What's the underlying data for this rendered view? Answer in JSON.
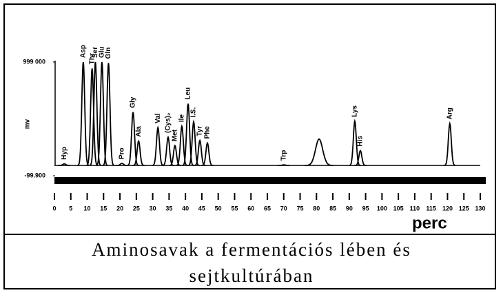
{
  "chart_data": {
    "type": "chromatogram",
    "title": "Aminosavak a fermentációs lében és sejtkultúrában",
    "y_label": "mv",
    "x_label": "perc",
    "categories": [
      "Asp",
      "Thr",
      "Ser",
      "Glu",
      "Gln",
      "Pro",
      "Gly",
      "Ala",
      "Val",
      "(Cys)₂",
      "Met",
      "Ile",
      "Leu",
      "I.S.",
      "Tyr",
      "Phe",
      "Trp",
      null,
      "Lys",
      "His",
      "Arg",
      "Hyp"
    ],
    "x": [
      8.8,
      11.5,
      12.5,
      14.5,
      16.5,
      20.6,
      24,
      25.7,
      31.6,
      34.7,
      36.8,
      38.9,
      40.8,
      42.5,
      44.4,
      46.7,
      70,
      80.8,
      91.7,
      93.4,
      120.7,
      3
    ],
    "values": [
      999000,
      937000,
      999000,
      999000,
      990000,
      20000,
      515000,
      236000,
      366000,
      273000,
      192000,
      379000,
      596000,
      422000,
      242000,
      217000,
      5000,
      255000,
      428000,
      143000,
      404000,
      15000
    ],
    "color": "#000000",
    "xlim": [
      0,
      130
    ],
    "xticks": [
      0,
      5,
      10,
      15,
      20,
      25,
      30,
      35,
      40,
      45,
      50,
      55,
      60,
      65,
      70,
      75,
      80,
      85,
      90,
      95,
      100,
      105,
      110,
      115,
      120,
      125,
      130
    ],
    "ylim": [
      -99900,
      999000
    ],
    "yticks": [
      {
        "value": 999000,
        "label": "999 000"
      },
      {
        "value": -99900,
        "label": "-99.900"
      }
    ]
  }
}
